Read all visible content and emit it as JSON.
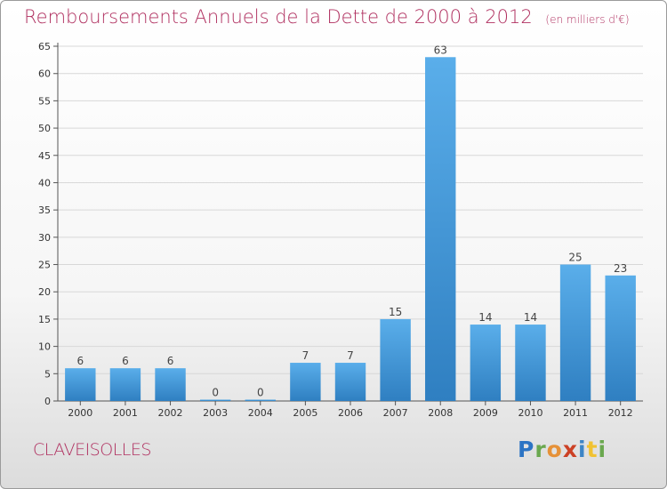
{
  "header": {
    "title": "Remboursements Annuels de la Dette de 2000 à 2012",
    "subtitle": "(en milliers d'€)"
  },
  "footer": {
    "town": "CLAVEISOLLES",
    "logo_letters": [
      "P",
      "r",
      "o",
      "x",
      "i",
      "t",
      "i"
    ]
  },
  "colors": {
    "bar_light": "#5aaeea",
    "bar_dark": "#2f7fc1",
    "title": "#b03060",
    "grid": "#d8d8d8"
  },
  "chart_data": {
    "type": "bar",
    "categories": [
      "2000",
      "2001",
      "2002",
      "2003",
      "2004",
      "2005",
      "2006",
      "2007",
      "2008",
      "2009",
      "2010",
      "2011",
      "2012"
    ],
    "values": [
      6,
      6,
      6,
      0,
      0,
      7,
      7,
      15,
      63,
      14,
      14,
      25,
      23
    ],
    "ylim": [
      0,
      65
    ],
    "yticks": [
      0,
      5,
      10,
      15,
      20,
      25,
      30,
      35,
      40,
      45,
      50,
      55,
      60,
      65
    ],
    "grid": true
  }
}
